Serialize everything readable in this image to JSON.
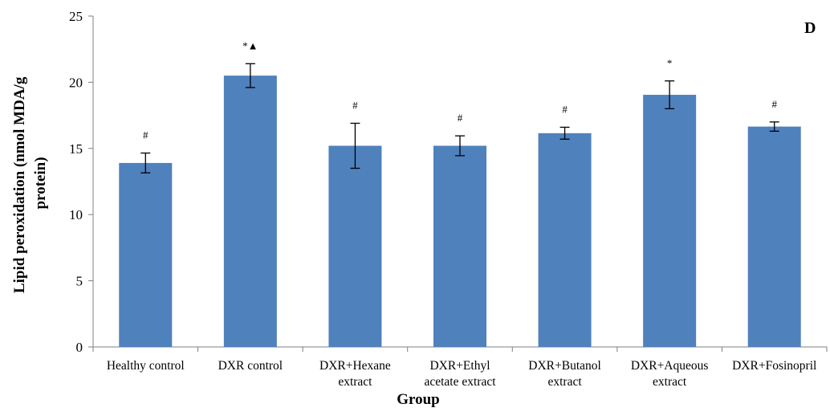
{
  "chart_data": {
    "type": "bar",
    "panel_label": "D",
    "xlabel": "Group",
    "ylabel_lines": [
      "Lipid peroxidation (nmol MDA/g",
      "protein)"
    ],
    "ylim": [
      0,
      25
    ],
    "yticks": [
      0,
      5,
      10,
      15,
      20,
      25
    ],
    "grid": false,
    "bar_color": "#4f81bd",
    "categories": [
      [
        "Healthy control"
      ],
      [
        "DXR control"
      ],
      [
        "DXR+Hexane",
        "extract"
      ],
      [
        "DXR+Ethyl",
        "acetate extract"
      ],
      [
        "DXR+Butanol",
        "extract"
      ],
      [
        "DXR+Aqueous",
        "extract"
      ],
      [
        "DXR+Fosinopril"
      ]
    ],
    "values": [
      13.9,
      20.5,
      15.2,
      15.2,
      16.15,
      19.05,
      16.65
    ],
    "errors": [
      0.75,
      0.9,
      1.7,
      0.75,
      0.45,
      1.05,
      0.35
    ],
    "significance": [
      "#",
      "*▲",
      "#",
      "#",
      "#",
      "*",
      "#"
    ]
  }
}
